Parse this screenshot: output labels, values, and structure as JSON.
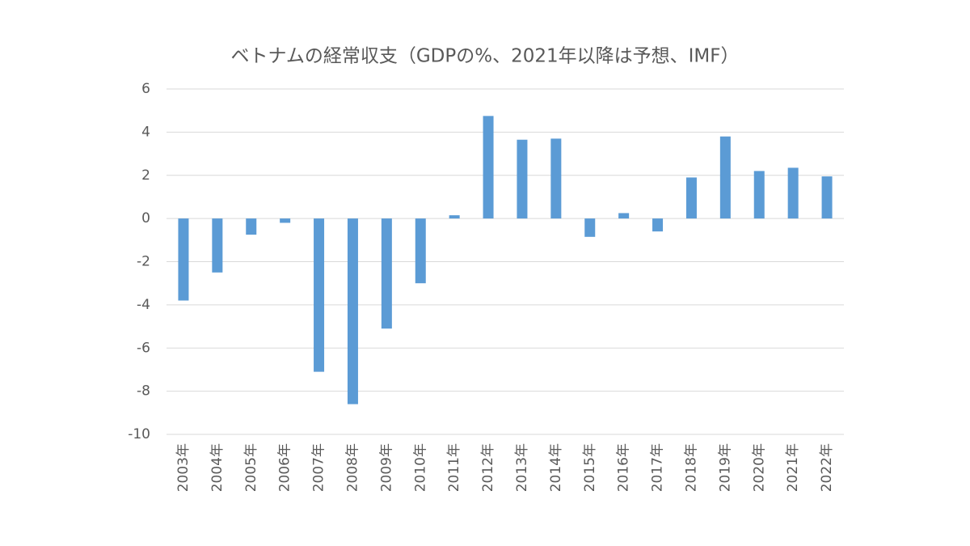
{
  "chart_data": {
    "type": "bar",
    "title": "ベトナムの経常収支（GDPの%、2021年以降は予想、IMF）",
    "categories": [
      "2003年",
      "2004年",
      "2005年",
      "2006年",
      "2007年",
      "2008年",
      "2009年",
      "2010年",
      "2011年",
      "2012年",
      "2013年",
      "2014年",
      "2015年",
      "2016年",
      "2017年",
      "2018年",
      "2019年",
      "2020年",
      "2021年",
      "2022年"
    ],
    "values": [
      -3.8,
      -2.5,
      -0.75,
      -0.2,
      -7.1,
      -8.6,
      -5.1,
      -3.0,
      0.15,
      4.75,
      3.65,
      3.7,
      -0.85,
      0.25,
      -0.6,
      1.9,
      3.8,
      2.2,
      2.35,
      1.95
    ],
    "color": "#5b9bd5",
    "ylim": [
      -10,
      6
    ],
    "yticks": [
      -10,
      -8,
      -6,
      -4,
      -2,
      0,
      2,
      4,
      6
    ],
    "grid": true
  }
}
